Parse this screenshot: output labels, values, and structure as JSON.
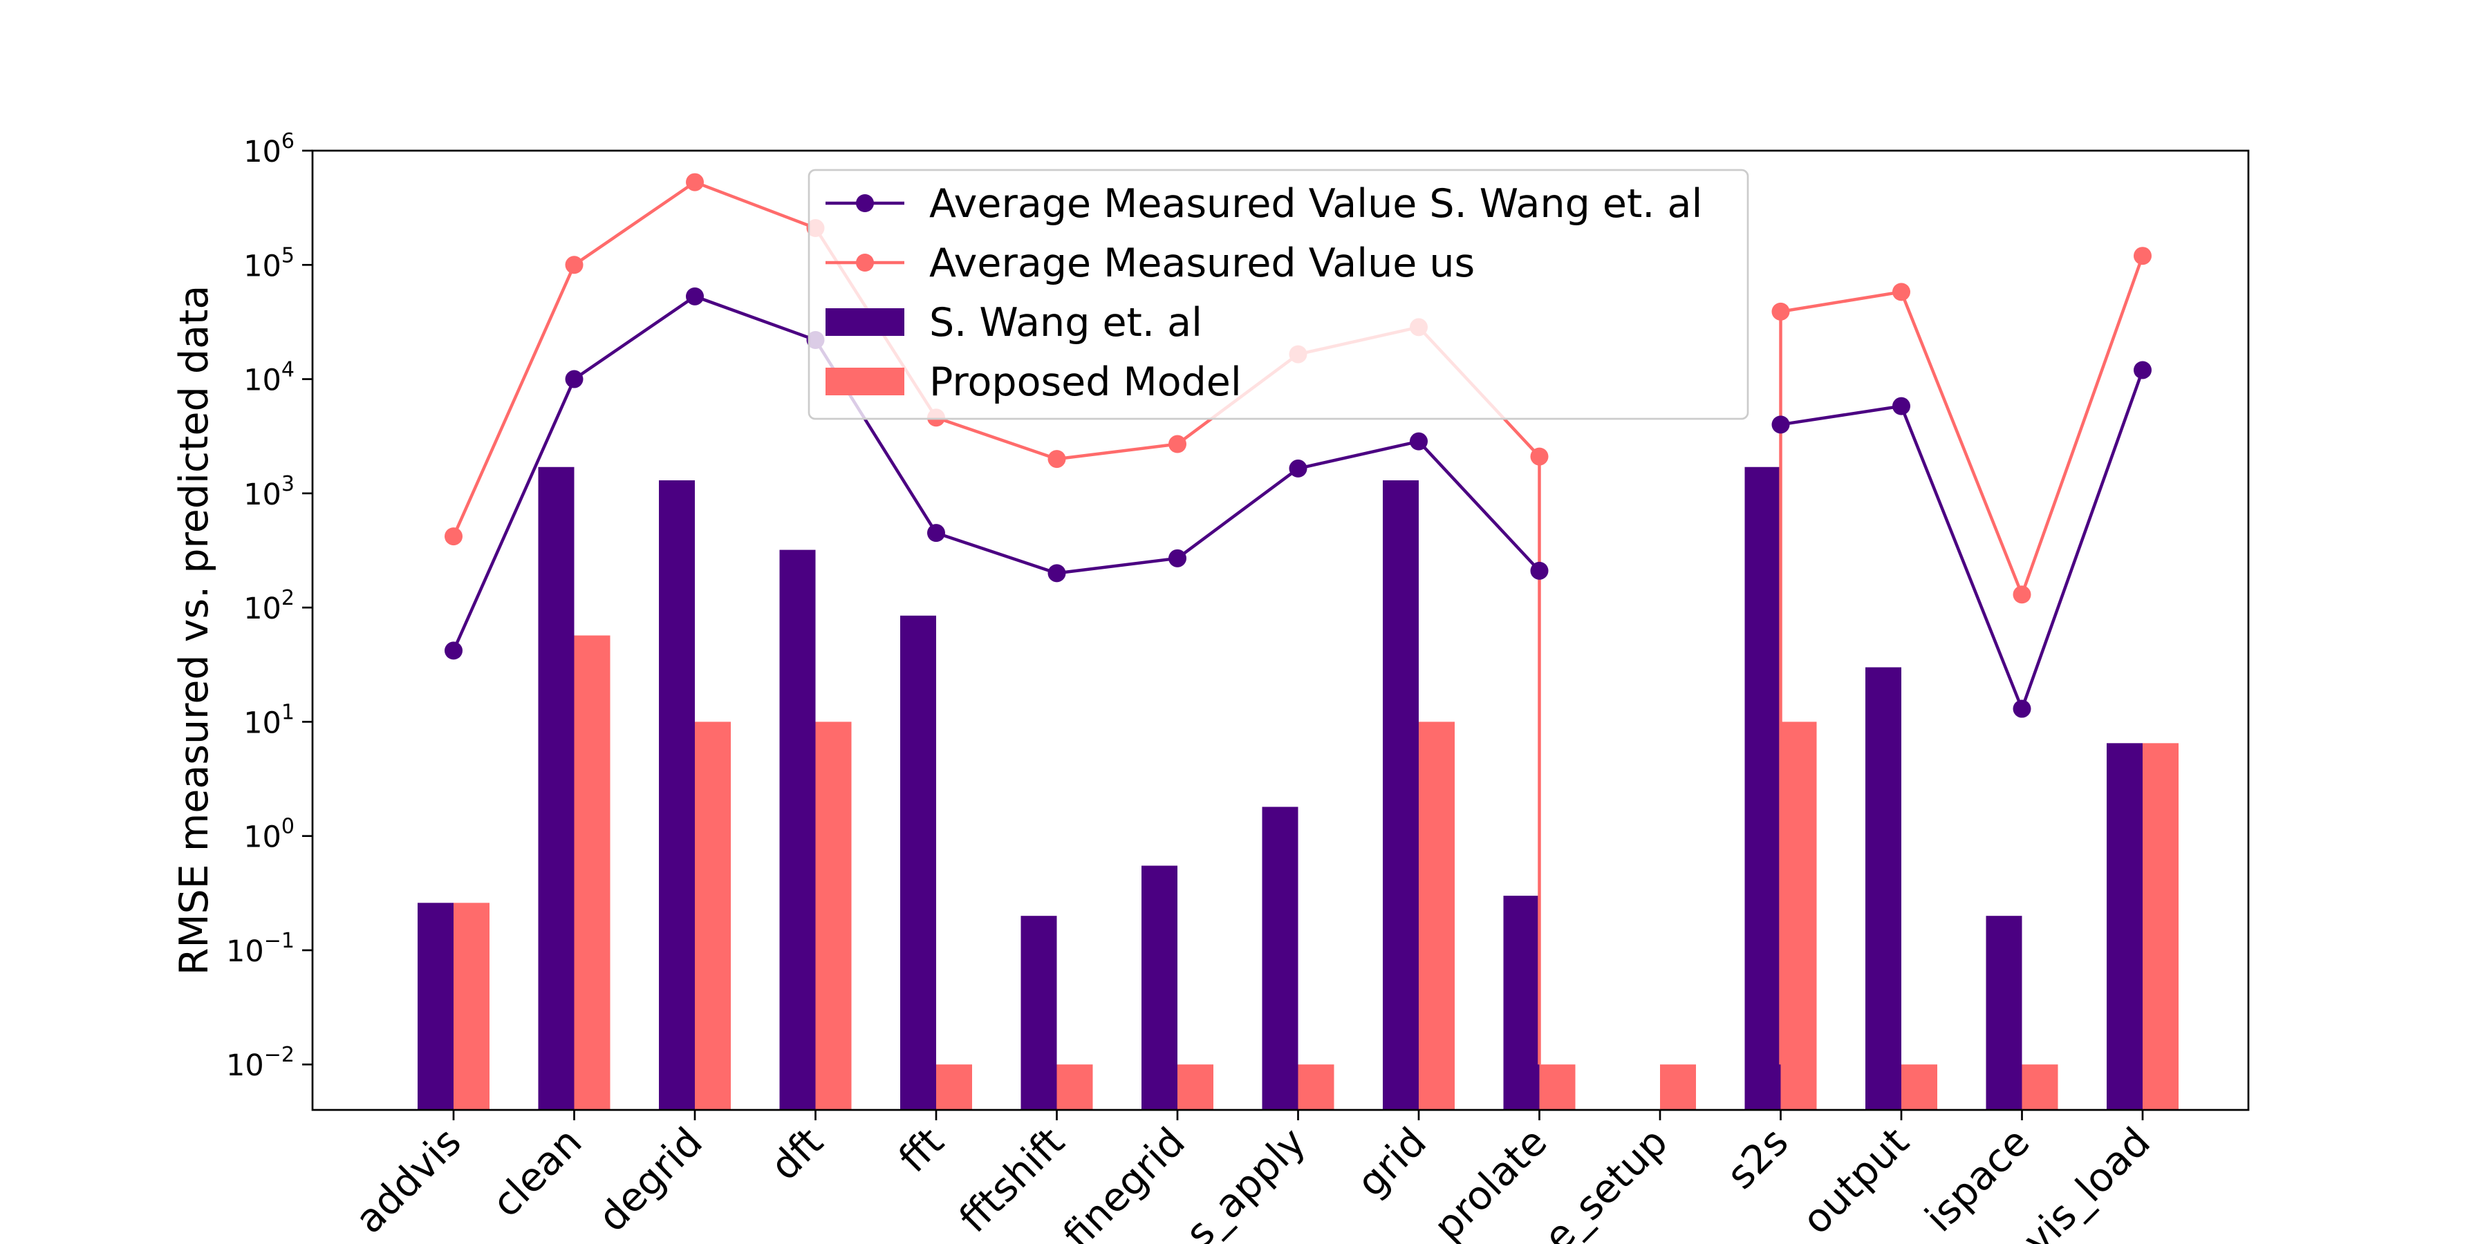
{
  "chart_data": {
    "type": "bar",
    "title": "",
    "xlabel": "",
    "ylabel": "RMSE measured vs. predicted data",
    "yscale": "log",
    "ylim": [
      0.004,
      1000000
    ],
    "categories": [
      "addvis",
      "clean",
      "degrid",
      "dft",
      "fft",
      "fftshift",
      "finegrid",
      "s_apply",
      "grid",
      "prolate",
      "e_setup",
      "s2s",
      "output",
      "ispace",
      "vis_load"
    ],
    "series": [
      {
        "name": "S. Wang et. al",
        "kind": "bar",
        "color": "#4b0082",
        "values": [
          0.26,
          1700,
          1300,
          320,
          85,
          0.2,
          0.55,
          1.8,
          1300,
          0.3,
          null,
          1700,
          30,
          0.2,
          6.5
        ]
      },
      {
        "name": "Proposed Model",
        "kind": "bar",
        "color": "#ff6b6b",
        "values": [
          0.26,
          57,
          10,
          10,
          0.01,
          0.01,
          0.01,
          0.01,
          10,
          0.01,
          0.01,
          10,
          0.01,
          0.01,
          6.5
        ]
      },
      {
        "name": "Average Measured Value S. Wang et. al",
        "kind": "line",
        "color": "#4b0082",
        "values": [
          42,
          10000,
          53000,
          22000,
          450,
          200,
          270,
          1650,
          2850,
          210,
          null,
          4000,
          5800,
          13,
          12000
        ]
      },
      {
        "name": "Average Measured Value us",
        "kind": "line",
        "color": "#ff6b6b",
        "values": [
          420,
          100000,
          530000,
          210000,
          4600,
          2000,
          2700,
          16500,
          28500,
          2100,
          null,
          39000,
          58000,
          130,
          120000
        ]
      }
    ],
    "us_line_drops": [
      {
        "from_category": "prolate",
        "to_value": 0.01
      },
      {
        "from_category": "s2s",
        "to_value": 0.01
      }
    ],
    "yticks": [
      {
        "value": 0.01,
        "base": "10",
        "exp": "−2"
      },
      {
        "value": 0.1,
        "base": "10",
        "exp": "−1"
      },
      {
        "value": 1,
        "base": "10",
        "exp": "0"
      },
      {
        "value": 10,
        "base": "10",
        "exp": "1"
      },
      {
        "value": 100,
        "base": "10",
        "exp": "2"
      },
      {
        "value": 1000,
        "base": "10",
        "exp": "3"
      },
      {
        "value": 10000,
        "base": "10",
        "exp": "4"
      },
      {
        "value": 100000,
        "base": "10",
        "exp": "5"
      },
      {
        "value": 1000000,
        "base": "10",
        "exp": "6"
      }
    ],
    "legend": {
      "placement": "upper-center",
      "order": [
        "Average Measured Value S. Wang et. al",
        "Average Measured Value us",
        "S. Wang et. al",
        "Proposed Model"
      ]
    },
    "grid": false
  }
}
